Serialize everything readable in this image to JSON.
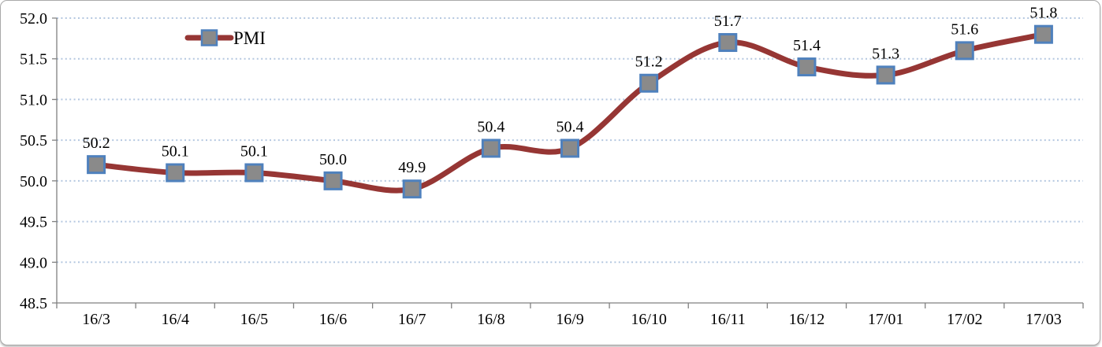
{
  "chart_data": {
    "type": "line",
    "title": "",
    "xlabel": "",
    "ylabel": "",
    "categories": [
      "16/3",
      "16/4",
      "16/5",
      "16/6",
      "16/7",
      "16/8",
      "16/9",
      "16/10",
      "16/11",
      "16/12",
      "17/01",
      "17/02",
      "17/03"
    ],
    "series": [
      {
        "name": "PMI",
        "values": [
          50.2,
          50.1,
          50.1,
          50.0,
          49.9,
          50.4,
          50.4,
          51.2,
          51.7,
          51.4,
          51.3,
          51.6,
          51.8
        ]
      }
    ],
    "ylim": [
      48.5,
      52.0
    ],
    "ytick_step": 0.5,
    "ytick_labels": [
      "48.5",
      "49.0",
      "49.5",
      "50.0",
      "50.5",
      "51.0",
      "51.5",
      "52.0"
    ],
    "grid": "horizontal-dotted",
    "data_labels": true,
    "smoothed_line": true,
    "legend": {
      "position": "inside-top-left",
      "entries": [
        "PMI"
      ]
    },
    "colors": {
      "line": "#963634",
      "marker_fill": "#8a8a8a",
      "marker_border": "#4f81bd",
      "gridline": "#b4c7e0",
      "axis": "#808080",
      "text": "#000000",
      "chart_border": "#a9a9a9",
      "background": "#ffffff"
    }
  }
}
